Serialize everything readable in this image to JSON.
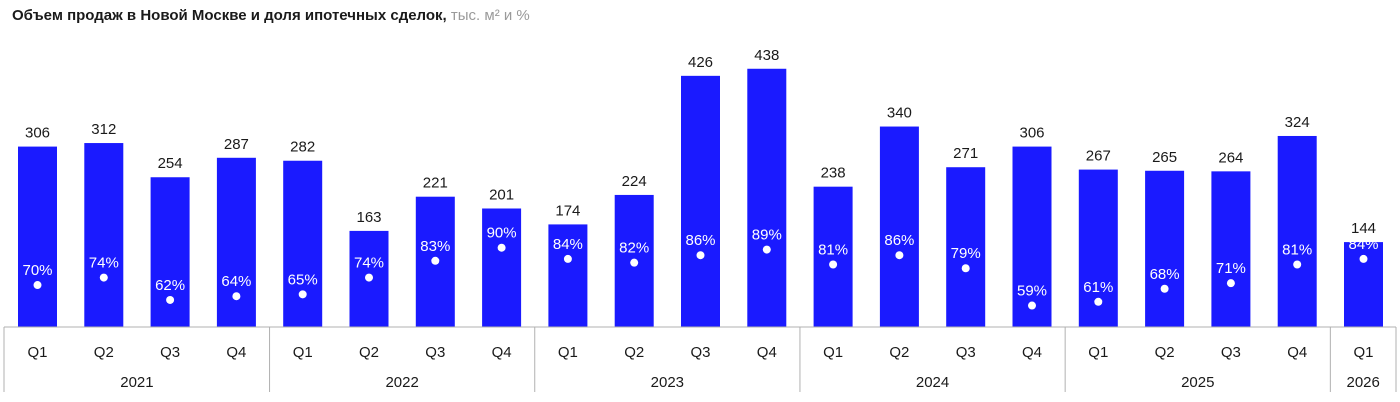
{
  "chart_data": {
    "type": "bar",
    "title": "Объем продаж в Новой Москве и доля ипотечных сделок,",
    "subtitle": "тыс. м² и %",
    "categories": [
      "Q1",
      "Q2",
      "Q3",
      "Q4",
      "Q1",
      "Q2",
      "Q3",
      "Q4",
      "Q1",
      "Q2",
      "Q3",
      "Q4",
      "Q1",
      "Q2",
      "Q3",
      "Q4",
      "Q1",
      "Q2",
      "Q3",
      "Q4",
      "Q1"
    ],
    "years": [
      {
        "label": "2021",
        "count": 4
      },
      {
        "label": "2022",
        "count": 4
      },
      {
        "label": "2023",
        "count": 4
      },
      {
        "label": "2024",
        "count": 4
      },
      {
        "label": "2025",
        "count": 4
      },
      {
        "label": "2026",
        "count": 1
      }
    ],
    "series": [
      {
        "type": "bar",
        "values": [
          306,
          312,
          254,
          287,
          282,
          163,
          221,
          201,
          174,
          224,
          426,
          438,
          238,
          340,
          271,
          306,
          267,
          265,
          264,
          324,
          144
        ],
        "labels": [
          "306",
          "312",
          "254",
          "287",
          "282",
          "163",
          "221",
          "201",
          "174",
          "224",
          "426",
          "438",
          "238",
          "340",
          "271",
          "306",
          "267",
          "265",
          "264",
          "324",
          "144"
        ]
      },
      {
        "type": "scatter",
        "values": [
          70,
          74,
          62,
          64,
          65,
          74,
          83,
          90,
          84,
          82,
          86,
          89,
          81,
          86,
          79,
          59,
          61,
          68,
          71,
          81,
          84
        ],
        "labels": [
          "70%",
          "74%",
          "62%",
          "64%",
          "65%",
          "74%",
          "83%",
          "90%",
          "84%",
          "82%",
          "86%",
          "89%",
          "81%",
          "86%",
          "79%",
          "59%",
          "61%",
          "68%",
          "71%",
          "81%",
          "84%"
        ]
      }
    ],
    "colors": {
      "bar": "#1a1aff",
      "marker": "#ffffff",
      "text": "#1a1a1a",
      "percent_text": "#ffffff",
      "axis": "#b0b0b0"
    },
    "ylim": [
      0,
      480
    ],
    "grid": false,
    "legend": "none"
  }
}
